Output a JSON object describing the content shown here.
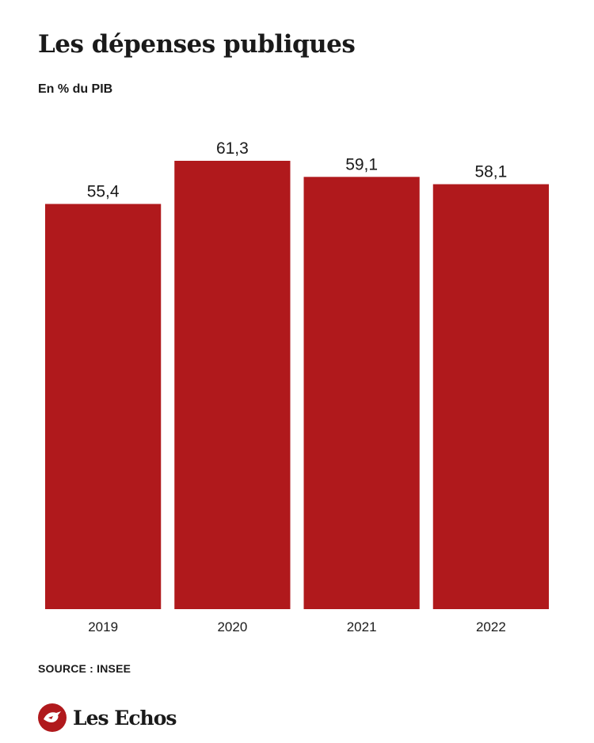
{
  "header": {
    "title": "Les dépenses publiques",
    "subtitle": "En % du PIB"
  },
  "footer": {
    "source": "SOURCE : INSEE",
    "brand": "Les Echos",
    "brand_icon": "les-echos-logo-icon"
  },
  "colors": {
    "bar": "#b0191c",
    "text": "#1a1a1a"
  },
  "chart_data": {
    "type": "bar",
    "title": "Les dépenses publiques",
    "subtitle": "En % du PIB",
    "categories": [
      "2019",
      "2020",
      "2021",
      "2022"
    ],
    "values": [
      55.4,
      61.3,
      59.1,
      58.1
    ],
    "value_labels": [
      "55,4",
      "61,3",
      "59,1",
      "58,1"
    ],
    "xlabel": "",
    "ylabel": "",
    "ylim": [
      0,
      61.3
    ],
    "grid": false,
    "legend": "none"
  }
}
